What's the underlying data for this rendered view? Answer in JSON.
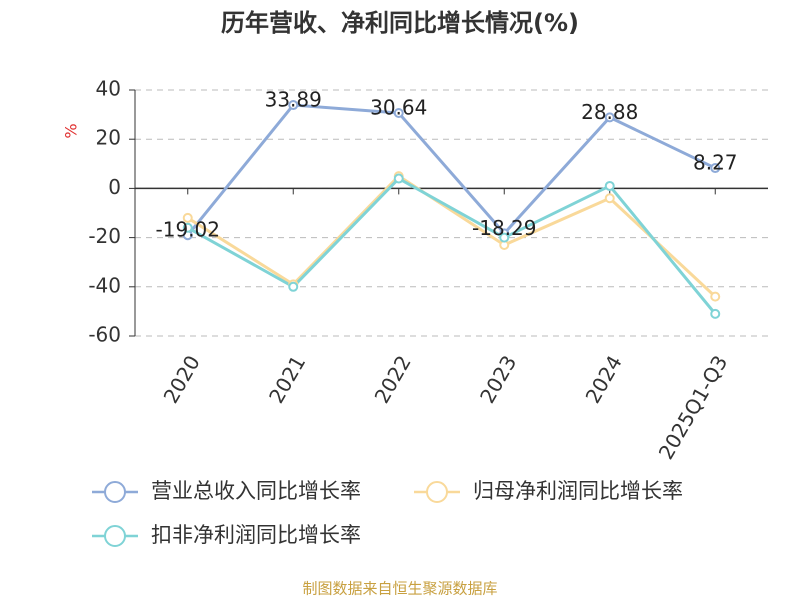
{
  "chart_data": {
    "type": "line",
    "title": "历年营收、净利同比增长情况(%)",
    "y_label": "%",
    "categories": [
      "2020",
      "2021",
      "2022",
      "2023",
      "2024",
      "2025Q1-Q3"
    ],
    "series": [
      {
        "name": "营业总收入同比增长率",
        "color": "#8eaad8",
        "values": [
          -19.02,
          33.89,
          30.64,
          -18.29,
          28.88,
          8.27
        ],
        "show_labels": true
      },
      {
        "name": "归母净利润同比增长率",
        "color": "#f9d99a",
        "values": [
          -12,
          -39,
          5,
          -23,
          -4,
          -44
        ],
        "show_labels": false
      },
      {
        "name": "扣非净利润同比增长率",
        "color": "#7fd3d6",
        "values": [
          -16,
          -40,
          4,
          -20,
          1,
          -51
        ],
        "show_labels": false
      }
    ],
    "ylim": [
      -60,
      40
    ],
    "yticks": [
      -60,
      -40,
      -20,
      0,
      20,
      40
    ],
    "grid": true,
    "legend": "bottom",
    "source": "制图数据来自恒生聚源数据库"
  }
}
